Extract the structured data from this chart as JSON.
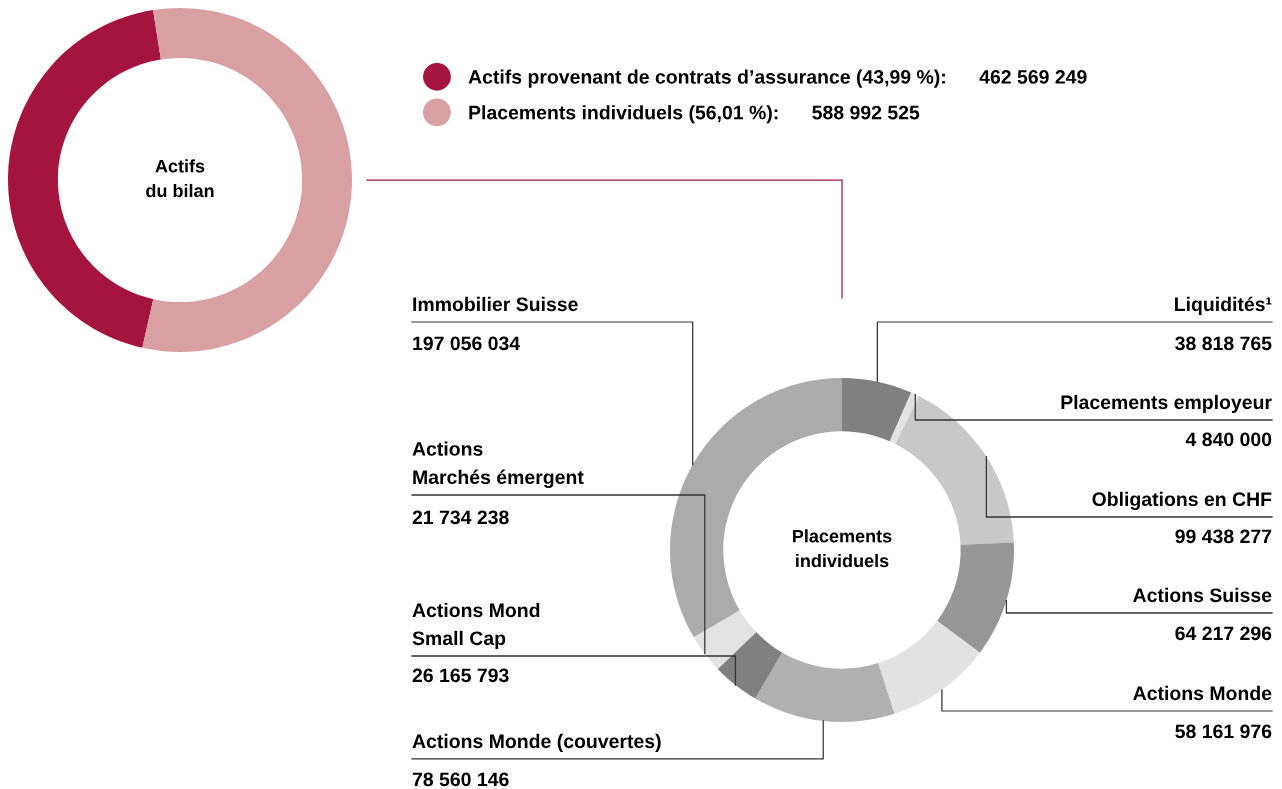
{
  "chart_data": [
    {
      "type": "donut",
      "annotations": [
        "Actifs\ndu bilan"
      ],
      "legend": "right",
      "categories": [
        "Actifs provenant de contrats d’assurance (43,99 %)",
        "Placements individuels (56,01 %)"
      ],
      "values": [
        462569249,
        588992525
      ],
      "value_labels": [
        "462 569 249",
        "588 992 525"
      ],
      "colors": [
        "#a5133f",
        "#d9a0a3"
      ]
    },
    {
      "type": "donut",
      "annotations": [
        "Placements\nindividuels"
      ],
      "categories": [
        "Liquidités¹",
        "Placements employeur",
        "Obligations en CHF",
        "Actions Suisse",
        "Actions Monde",
        "Actions Monde (couvertes)",
        "Actions Mond\nSmall Cap",
        "Actions\nMarchés émergent",
        "Immobilier Suisse"
      ],
      "values": [
        38818765,
        4840000,
        99438277,
        64217296,
        58161976,
        78560146,
        26165793,
        21734238,
        197056034
      ],
      "value_labels": [
        "38 818 765",
        "4 840 000",
        "99 438 277",
        "64 217 296",
        "58 161 976",
        "78 560 146",
        "26 165 793",
        "21 734 238",
        "197 056 034"
      ],
      "colors": [
        "#808080",
        "#e3e3e3",
        "#c8c8c8",
        "#969696",
        "#e2e2e2",
        "#b0b0b0",
        "#808080",
        "#e3e3e3",
        "#ababab"
      ]
    }
  ]
}
